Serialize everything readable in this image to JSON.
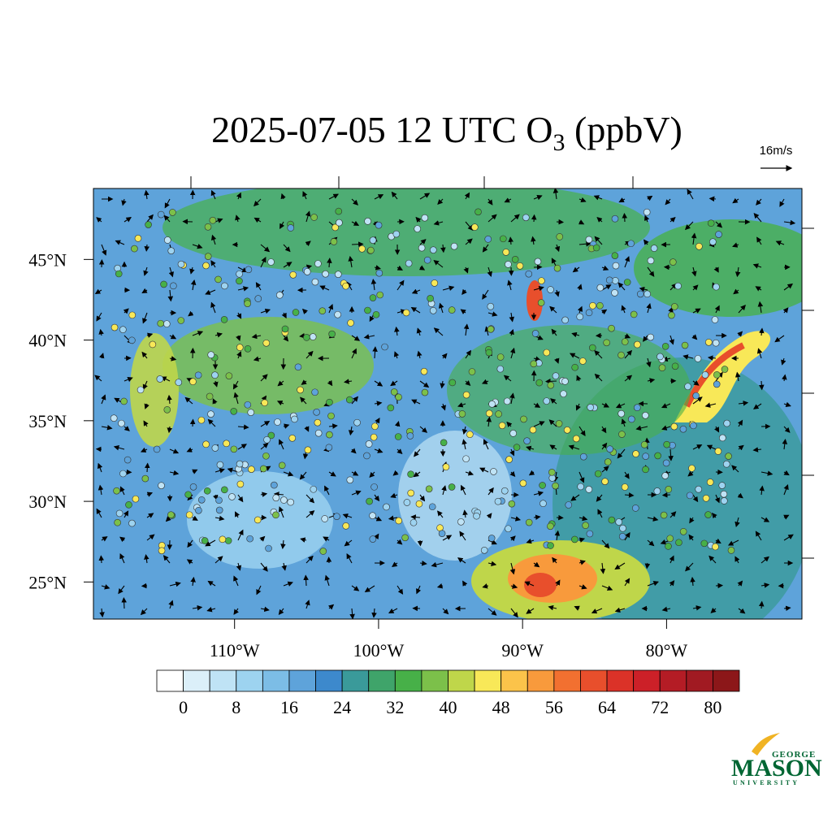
{
  "title": {
    "text": "2025-07-05 12 UTC O",
    "subscript": "3",
    "suffix": " (ppbV)"
  },
  "vector_reference": "16m/s",
  "map": {
    "xlim": [
      -119.8,
      -70.6
    ],
    "ylim": [
      22.7,
      49.4
    ],
    "xticks": [
      {
        "value": -110,
        "label": "110°W"
      },
      {
        "value": -100,
        "label": "100°W"
      },
      {
        "value": -90,
        "label": "90°W"
      },
      {
        "value": -80,
        "label": "80°W"
      }
    ],
    "yticks": [
      {
        "value": 45,
        "label": "45°N"
      },
      {
        "value": 40,
        "label": "40°N"
      },
      {
        "value": 35,
        "label": "35°N"
      },
      {
        "value": 30,
        "label": "30°N"
      },
      {
        "value": 25,
        "label": "25°N"
      }
    ]
  },
  "colorbar": {
    "lim": [
      -4,
      84
    ],
    "ticks": [
      0,
      8,
      16,
      24,
      32,
      40,
      48,
      56,
      64,
      72,
      80
    ],
    "colors": [
      "#ffffff",
      "#dbeff9",
      "#bfe3f5",
      "#9dd3f0",
      "#7cbde6",
      "#5ea3da",
      "#3d89cc",
      "#3a9a9a",
      "#3fa46a",
      "#47b048",
      "#7cc04a",
      "#bfd64a",
      "#f8e858",
      "#fbc34a",
      "#f89a3c",
      "#f27030",
      "#e84f2c",
      "#db3228",
      "#cc2028",
      "#b41c25",
      "#a11a22",
      "#8c1719"
    ]
  },
  "logo": {
    "top": "GEORGE",
    "name": "MASON",
    "bottom": "UNIVERSITY"
  }
}
